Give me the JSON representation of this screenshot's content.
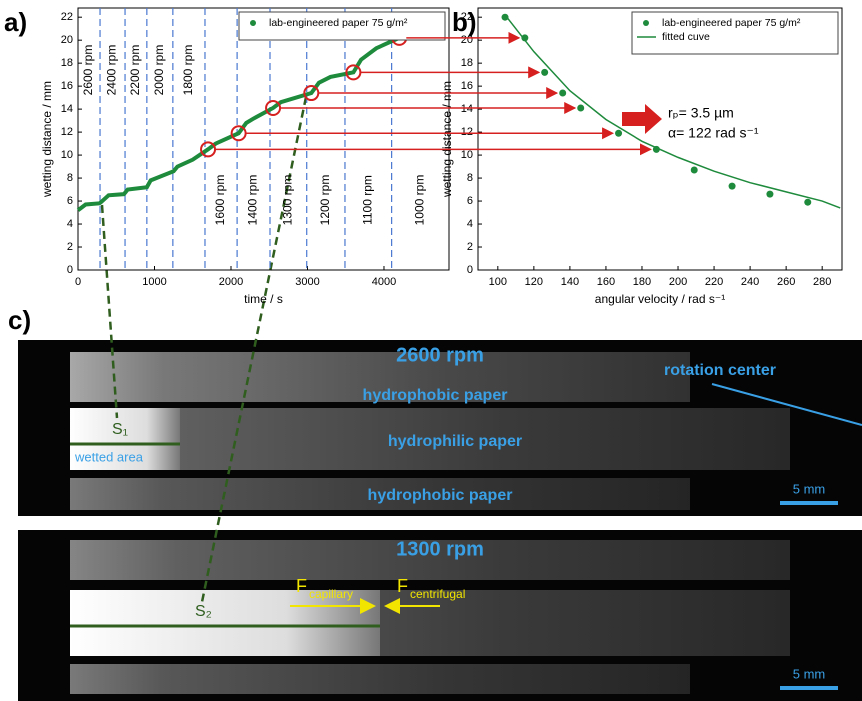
{
  "chart_data": [
    {
      "type": "line",
      "panel_label": "a)",
      "xlabel": "time / s",
      "ylabel": "wetting distance / mm",
      "x": [
        0,
        100,
        280,
        300,
        400,
        600,
        650,
        900,
        950,
        1250,
        1300,
        1500,
        1700,
        1800,
        2100,
        2200,
        2300,
        2550,
        2650,
        3050,
        3150,
        3300,
        3600,
        3700,
        3900,
        4200,
        4300,
        4500,
        4700
      ],
      "series": [
        {
          "name": "lab-engineered paper 75 g/m²",
          "color": "#1e8a3c",
          "values": [
            5.2,
            5.7,
            5.8,
            5.9,
            6.5,
            6.6,
            7.0,
            7.2,
            7.8,
            8.6,
            9.0,
            9.6,
            10.5,
            11.0,
            11.9,
            12.8,
            13.2,
            14.1,
            14.6,
            15.4,
            16.3,
            16.8,
            17.2,
            18.3,
            19.3,
            20.2,
            21.0,
            21.8,
            22.0
          ]
        }
      ],
      "xlim": [
        0,
        4850
      ],
      "ylim": [
        0,
        22.8
      ],
      "xticks": [
        0,
        1000,
        2000,
        3000,
        4000
      ],
      "yticks": [
        0,
        2,
        4,
        6,
        8,
        10,
        12,
        14,
        16,
        18,
        20,
        22
      ],
      "speed_changes": [
        288,
        615,
        900,
        1240,
        1660,
        2080,
        2510,
        2990,
        3490,
        4100
      ],
      "speed_labels": [
        "2600 rpm",
        "2400 rpm",
        "2200 rpm",
        "2000 rpm",
        "1800 rpm",
        "1600 rpm",
        "1400 rpm",
        "1300 rpm",
        "1200 rpm",
        "1100 rpm",
        "1000 rpm"
      ],
      "highlighted": {
        "x": [
          1700,
          2100,
          2550,
          3050,
          3600,
          4200
        ],
        "y": [
          10.5,
          11.9,
          14.1,
          15.4,
          17.2,
          20.2
        ],
        "color": "#d62020"
      }
    },
    {
      "type": "scatter",
      "panel_label": "b)",
      "xlabel": "angular velocity / rad s⁻¹",
      "ylabel": "wetting distance / mm",
      "series": [
        {
          "name": "lab-engineered paper 75 g/m²",
          "color": "#1e8a3c",
          "mode": "markers",
          "x": [
            104,
            115,
            126,
            136,
            146,
            167,
            188,
            209,
            230,
            251,
            272
          ],
          "values": [
            22.0,
            20.2,
            17.2,
            15.4,
            14.1,
            11.9,
            10.5,
            8.7,
            7.3,
            6.6,
            5.9
          ]
        },
        {
          "name": "fitted cuve",
          "color": "#1e8a3c",
          "mode": "line",
          "x": [
            105,
            120,
            140,
            160,
            180,
            200,
            220,
            240,
            260,
            280,
            290
          ],
          "values": [
            22.0,
            19.0,
            15.6,
            13.1,
            11.2,
            9.8,
            8.6,
            7.6,
            6.8,
            6.0,
            5.4
          ]
        }
      ],
      "xlim": [
        89,
        291
      ],
      "ylim": [
        0,
        22.8
      ],
      "xticks": [
        100,
        120,
        140,
        160,
        180,
        200,
        220,
        240,
        260,
        280
      ],
      "yticks": [
        0,
        2,
        4,
        6,
        8,
        10,
        12,
        14,
        16,
        18,
        20,
        22
      ],
      "annotations": [
        "rₚ= 3.5 µm",
        "α= 122 rad s⁻¹"
      ]
    }
  ],
  "photo_panel": {
    "label": "c)",
    "top": {
      "speed": "2600 rpm",
      "regions": [
        "hydrophobic paper",
        "hydrophilic paper",
        "hydrophobic paper"
      ],
      "rotation_center": "rotation center",
      "s": "S₁",
      "wetted_area": "wetted area",
      "scale_bar": "5 mm"
    },
    "bottom": {
      "speed": "1300 rpm",
      "s": "S₂",
      "f": "F",
      "capillary": "capillary",
      "centrifugal": "centrifugal",
      "scale_bar": "5 mm"
    }
  }
}
